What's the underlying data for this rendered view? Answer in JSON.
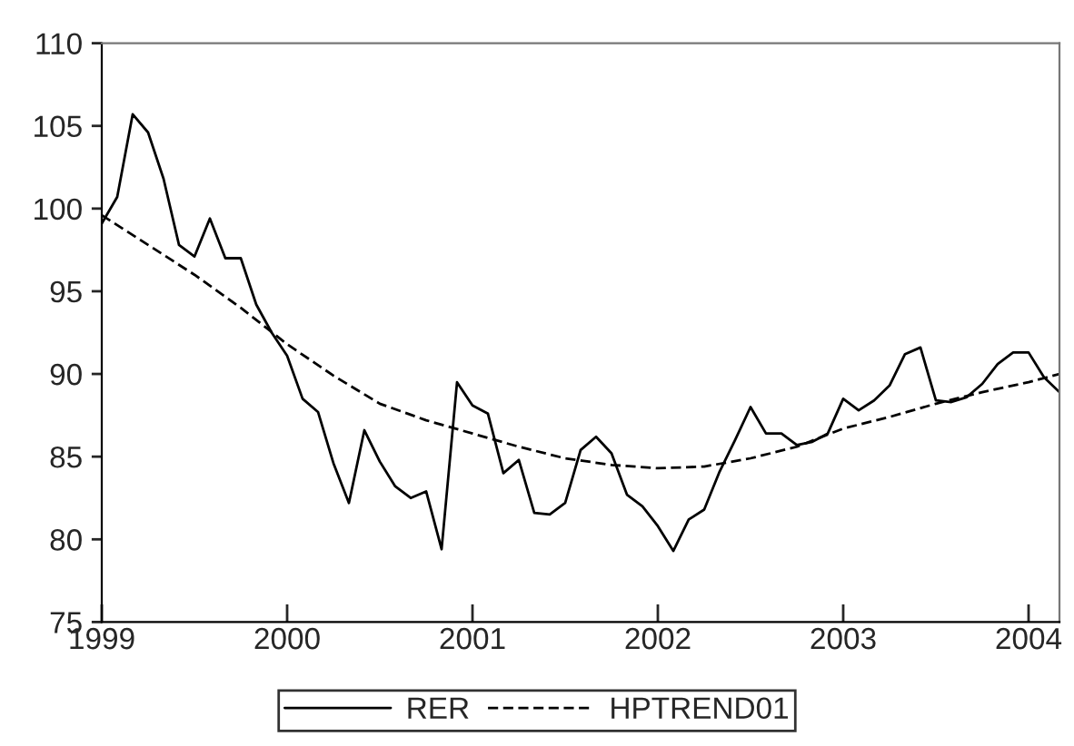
{
  "chart_data": {
    "type": "line",
    "xlim": [
      "1999-01",
      "2004-03"
    ],
    "xticks": [
      "1999",
      "2000",
      "2001",
      "2002",
      "2003",
      "2004"
    ],
    "ylim": [
      75,
      110
    ],
    "yticks": [
      75,
      80,
      85,
      90,
      95,
      100,
      105,
      110
    ],
    "grid": false,
    "legend": "bottom",
    "marker": "none",
    "series": [
      {
        "name": "RER",
        "color": "#000000",
        "line_style": "solid",
        "x": [
          "1999-01",
          "1999-02",
          "1999-03",
          "1999-04",
          "1999-05",
          "1999-06",
          "1999-07",
          "1999-08",
          "1999-09",
          "1999-10",
          "1999-11",
          "1999-12",
          "2000-01",
          "2000-02",
          "2000-03",
          "2000-04",
          "2000-05",
          "2000-06",
          "2000-07",
          "2000-08",
          "2000-09",
          "2000-10",
          "2000-11",
          "2000-12",
          "2001-01",
          "2001-02",
          "2001-03",
          "2001-04",
          "2001-05",
          "2001-06",
          "2001-07",
          "2001-08",
          "2001-09",
          "2001-10",
          "2001-11",
          "2001-12",
          "2002-01",
          "2002-02",
          "2002-03",
          "2002-04",
          "2002-05",
          "2002-06",
          "2002-07",
          "2002-08",
          "2002-09",
          "2002-10",
          "2002-11",
          "2002-12",
          "2003-01",
          "2003-02",
          "2003-03",
          "2003-04",
          "2003-05",
          "2003-06",
          "2003-07",
          "2003-08",
          "2003-09",
          "2003-10",
          "2003-11",
          "2003-12",
          "2004-01",
          "2004-02",
          "2004-03"
        ],
        "values": [
          99.1,
          100.7,
          105.7,
          104.6,
          101.8,
          97.8,
          97.1,
          99.4,
          97.0,
          97.0,
          94.2,
          92.5,
          91.1,
          88.5,
          87.7,
          84.6,
          82.2,
          86.6,
          84.7,
          83.2,
          82.5,
          82.9,
          79.4,
          89.5,
          88.1,
          87.6,
          84.0,
          84.8,
          81.6,
          81.5,
          82.2,
          85.4,
          86.2,
          85.2,
          82.7,
          82.0,
          80.8,
          79.3,
          81.2,
          81.8,
          84.1,
          86.0,
          88.0,
          86.4,
          86.4,
          85.7,
          85.9,
          86.4,
          88.5,
          87.8,
          88.4,
          89.3,
          91.2,
          91.6,
          88.4,
          88.3,
          88.6,
          89.4,
          90.6,
          91.3,
          91.3,
          89.8,
          88.9
        ]
      },
      {
        "name": "HPTREND01",
        "color": "#000000",
        "line_style": "dashed",
        "x": [
          "1999-01",
          "1999-04",
          "1999-07",
          "1999-10",
          "2000-01",
          "2000-04",
          "2000-07",
          "2000-10",
          "2001-01",
          "2001-04",
          "2001-07",
          "2001-10",
          "2002-01",
          "2002-04",
          "2002-07",
          "2002-10",
          "2003-01",
          "2003-04",
          "2003-07",
          "2003-10",
          "2004-01",
          "2004-03"
        ],
        "values": [
          99.6,
          97.8,
          96.0,
          94.0,
          91.8,
          89.9,
          88.2,
          87.2,
          86.4,
          85.6,
          84.9,
          84.5,
          84.3,
          84.4,
          84.9,
          85.6,
          86.7,
          87.4,
          88.2,
          88.9,
          89.5,
          90.0
        ]
      }
    ]
  }
}
